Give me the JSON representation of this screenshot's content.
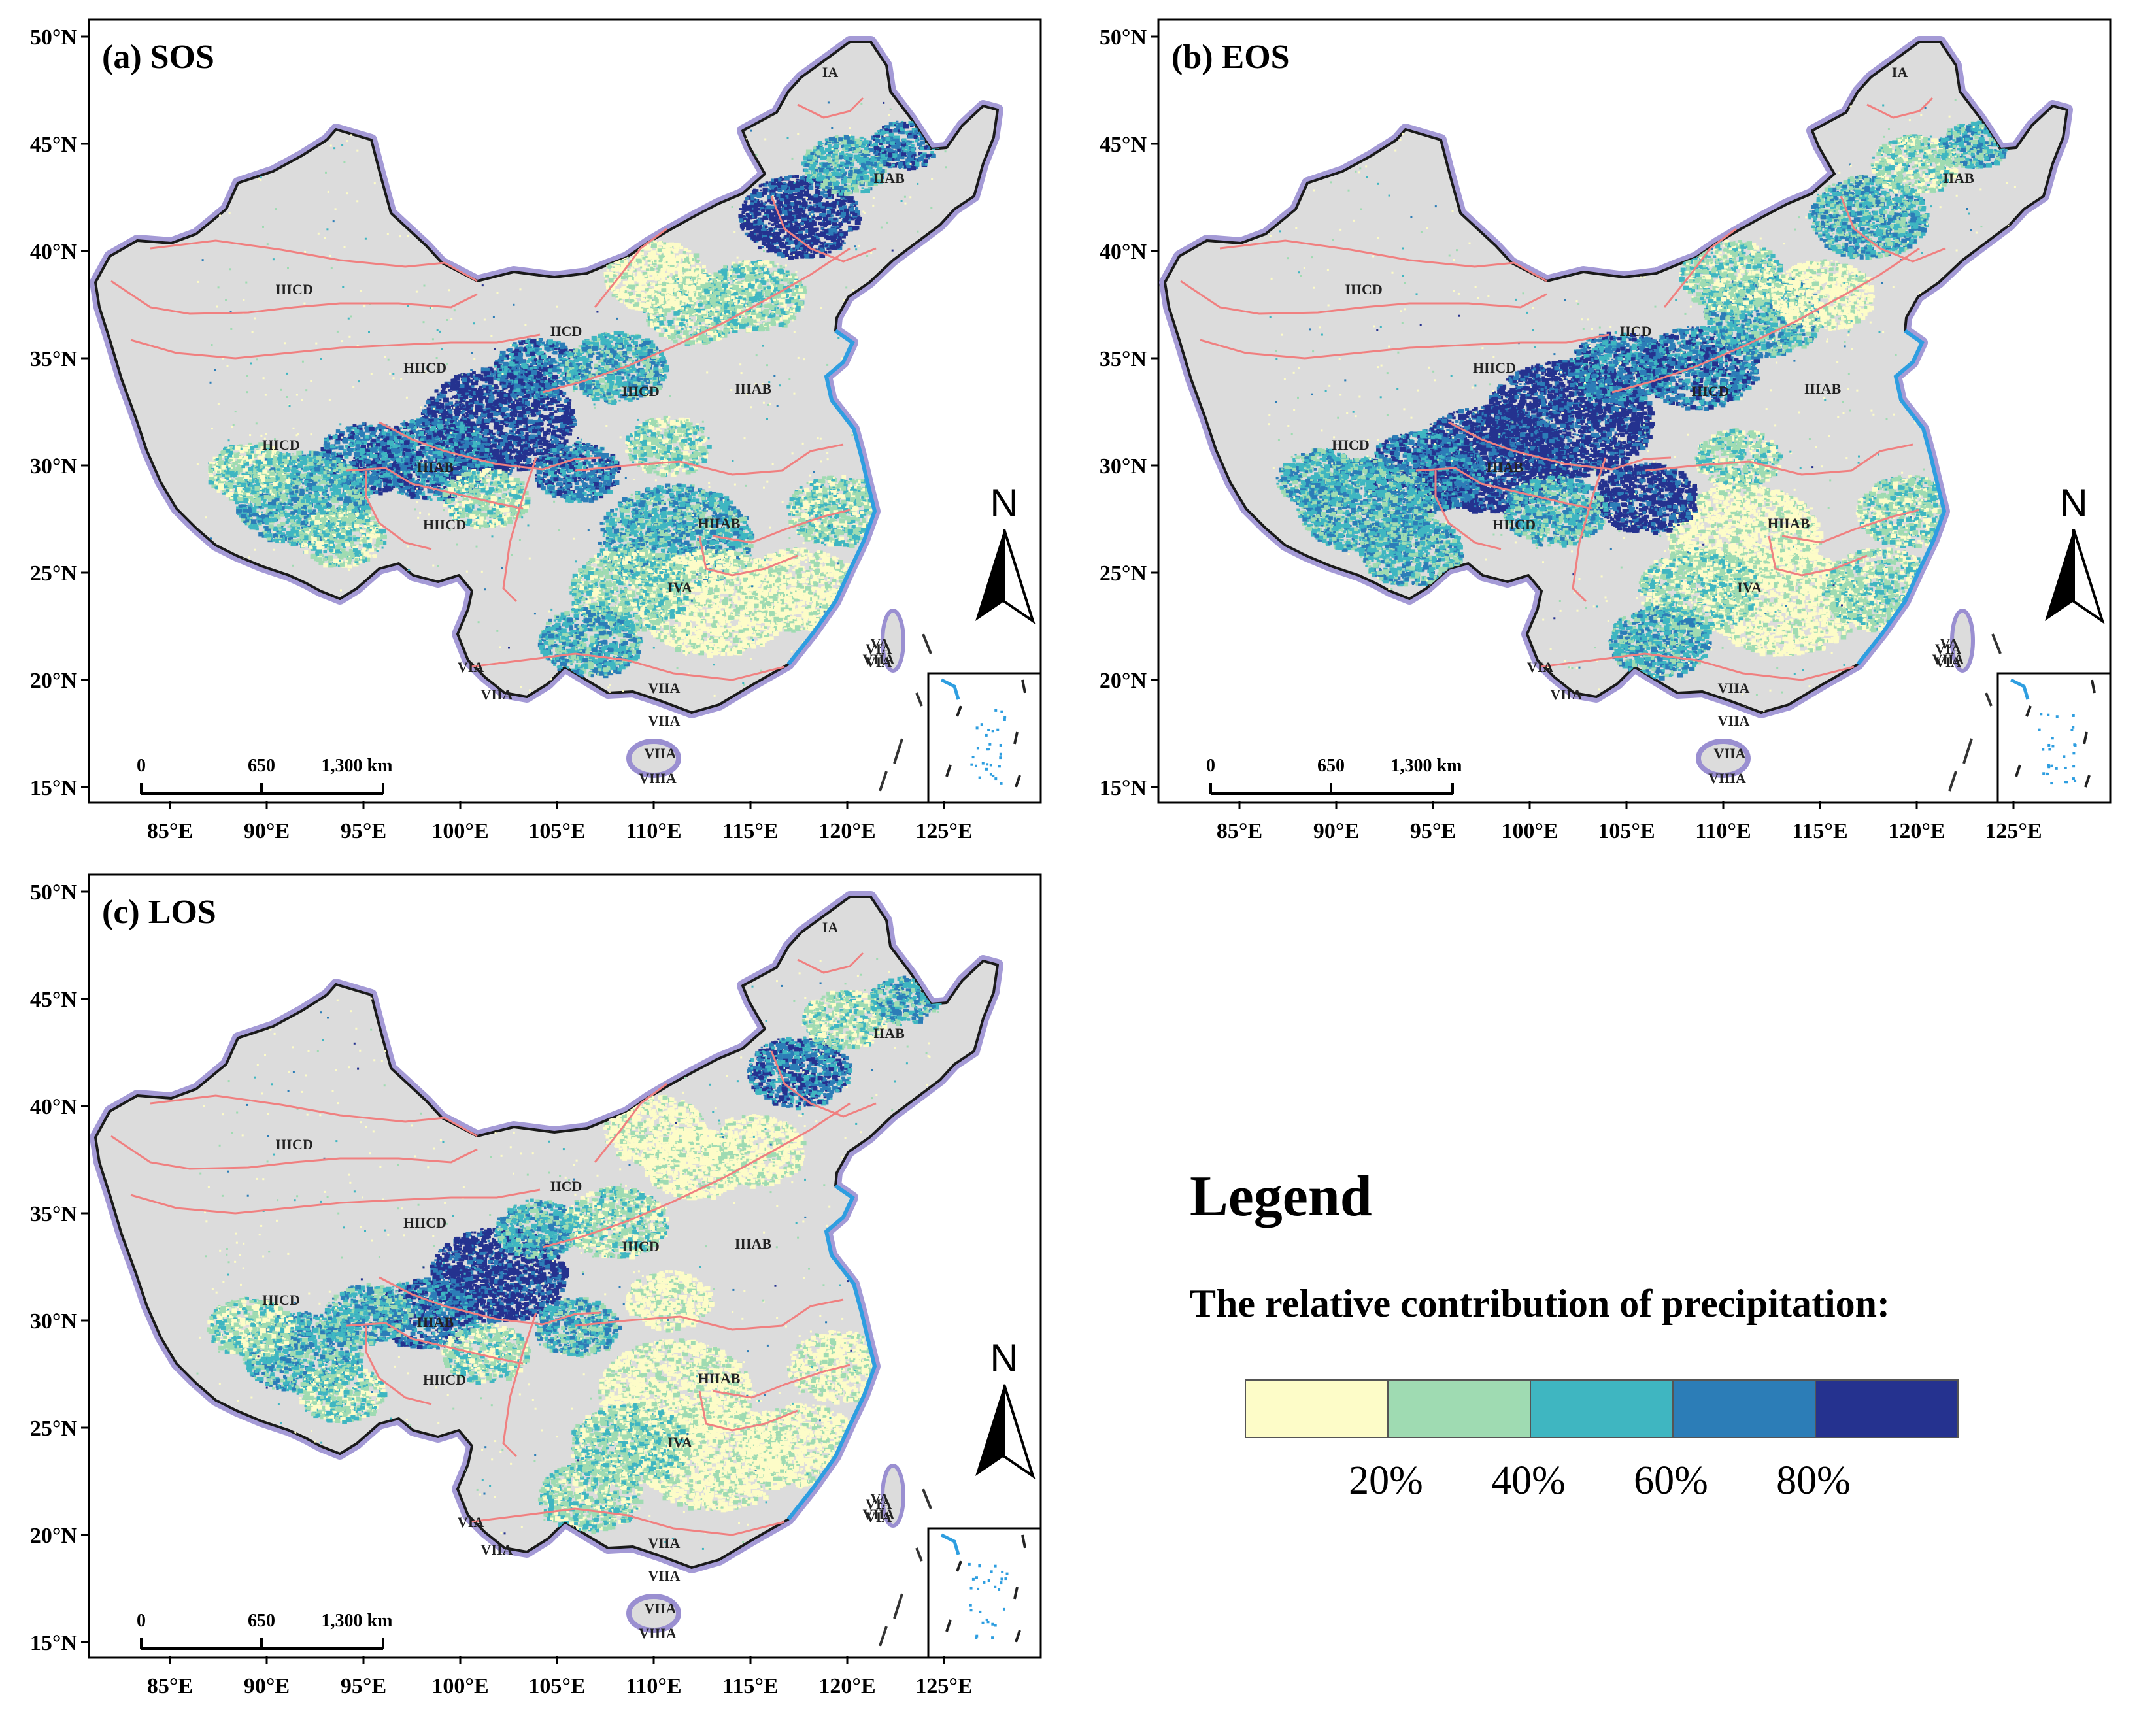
{
  "panels": [
    {
      "id": "a",
      "title": "(a) SOS",
      "variant": 0
    },
    {
      "id": "b",
      "title": "(b) EOS",
      "variant": 1
    },
    {
      "id": "c",
      "title": "(c) LOS",
      "variant": 2
    }
  ],
  "axes": {
    "lon_ticks": [
      "85°E",
      "90°E",
      "95°E",
      "100°E",
      "105°E",
      "110°E",
      "115°E",
      "120°E",
      "125°E"
    ],
    "lat_ticks": [
      "50°N",
      "45°N",
      "40°N",
      "35°N",
      "30°N",
      "25°N",
      "20°N",
      "15°N"
    ]
  },
  "north_arrow": {
    "label": "N"
  },
  "scale_bar": {
    "labels": [
      "0",
      "650",
      "1,300 km"
    ]
  },
  "regions": [
    "IA",
    "IIAB",
    "IICD",
    "IIICD",
    "HIICD",
    "IIICD",
    "IIIAB",
    "HICD",
    "HIAB",
    "HIICD",
    "HIIAB",
    "IVA",
    "VA",
    "VIA",
    "VIIA",
    "VIA",
    "VIIA",
    "VIIA",
    "VIIA",
    "VIIIA",
    "VIA",
    "VIIA"
  ],
  "legend": {
    "title": "Legend",
    "subtitle": "The relative contribution of precipitation:",
    "colors": [
      "#fdfcc8",
      "#9fdbb2",
      "#3fb6c1",
      "#2c7db7",
      "#25328f"
    ],
    "ticks": [
      "20%",
      "40%",
      "60%",
      "80%"
    ]
  },
  "colors": {
    "land": "#dcdcdc",
    "border_glow": "#9a8fd1",
    "region_lines": "#f08080",
    "coast": "#2e9ee0"
  }
}
